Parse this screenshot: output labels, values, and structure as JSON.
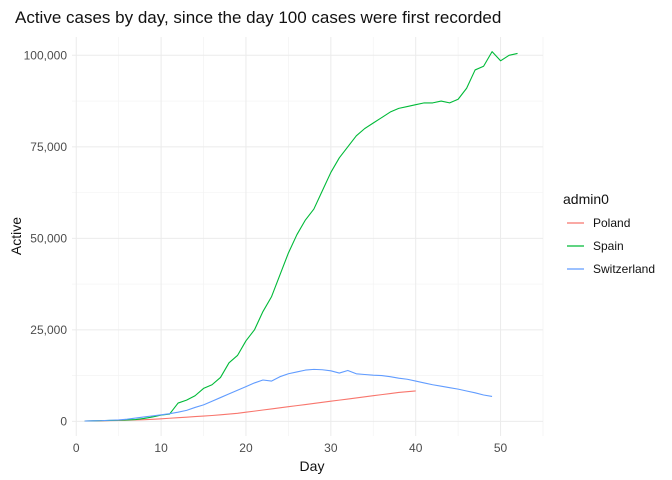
{
  "chart_data": {
    "type": "line",
    "title": "Active cases by day, since the day 100 cases were first recorded",
    "xlabel": "Day",
    "ylabel": "Active",
    "xlim": [
      -0.5,
      55
    ],
    "ylim": [
      -4000,
      105000
    ],
    "x_ticks": [
      0,
      10,
      20,
      30,
      40,
      50
    ],
    "y_ticks": [
      0,
      25000,
      50000,
      75000,
      100000
    ],
    "y_tick_labels": [
      "0",
      "25,000",
      "50,000",
      "75,000",
      "100,000"
    ],
    "grid": true,
    "legend": {
      "title": "admin0",
      "position": "right"
    },
    "series": [
      {
        "name": "Poland",
        "color": "#F8766D",
        "x": [
          1,
          2,
          3,
          4,
          5,
          6,
          7,
          8,
          9,
          10,
          11,
          12,
          13,
          14,
          15,
          16,
          17,
          18,
          19,
          20,
          21,
          22,
          23,
          24,
          25,
          26,
          27,
          28,
          29,
          30,
          31,
          32,
          33,
          34,
          35,
          36,
          37,
          38,
          39,
          40
        ],
        "y": [
          100,
          120,
          150,
          200,
          250,
          300,
          380,
          450,
          550,
          700,
          850,
          1000,
          1150,
          1300,
          1450,
          1600,
          1800,
          2000,
          2200,
          2500,
          2800,
          3100,
          3400,
          3700,
          4000,
          4300,
          4600,
          4900,
          5200,
          5500,
          5800,
          6100,
          6400,
          6700,
          7000,
          7300,
          7600,
          7900,
          8100,
          8300
        ]
      },
      {
        "name": "Spain",
        "color": "#00BA38",
        "x": [
          1,
          2,
          3,
          4,
          5,
          6,
          7,
          8,
          9,
          10,
          11,
          12,
          13,
          14,
          15,
          16,
          17,
          18,
          19,
          20,
          21,
          22,
          23,
          24,
          25,
          26,
          27,
          28,
          29,
          30,
          31,
          32,
          33,
          34,
          35,
          36,
          37,
          38,
          39,
          40,
          41,
          42,
          43,
          44,
          45,
          46,
          47,
          48,
          49,
          50,
          51,
          52
        ],
        "y": [
          100,
          150,
          200,
          250,
          300,
          400,
          500,
          800,
          1200,
          1700,
          2000,
          5000,
          5800,
          7000,
          9000,
          10000,
          12000,
          16000,
          18000,
          22000,
          25000,
          30000,
          34000,
          40000,
          46000,
          51000,
          55000,
          58000,
          63000,
          68000,
          72000,
          75000,
          78000,
          80000,
          81500,
          83000,
          84500,
          85500,
          86000,
          86500,
          87000,
          87000,
          87500,
          87000,
          88000,
          91000,
          96000,
          97000,
          101000,
          98500,
          100000,
          100500
        ]
      },
      {
        "name": "Switzerland",
        "color": "#619CFF",
        "x": [
          1,
          2,
          3,
          4,
          5,
          6,
          7,
          8,
          9,
          10,
          11,
          12,
          13,
          14,
          15,
          16,
          17,
          18,
          19,
          20,
          21,
          22,
          23,
          24,
          25,
          26,
          27,
          28,
          29,
          30,
          31,
          32,
          33,
          34,
          35,
          36,
          37,
          38,
          39,
          40,
          41,
          42,
          43,
          44,
          45,
          46,
          47,
          48,
          49
        ],
        "y": [
          100,
          150,
          200,
          300,
          400,
          600,
          900,
          1200,
          1500,
          1800,
          2100,
          2500,
          3000,
          3800,
          4500,
          5500,
          6500,
          7500,
          8500,
          9500,
          10500,
          11300,
          11000,
          12200,
          13000,
          13500,
          14000,
          14200,
          14100,
          13800,
          13200,
          13900,
          13000,
          12800,
          12600,
          12500,
          12200,
          11800,
          11500,
          11000,
          10500,
          10000,
          9600,
          9200,
          8800,
          8300,
          7800,
          7200,
          6800
        ]
      }
    ]
  }
}
